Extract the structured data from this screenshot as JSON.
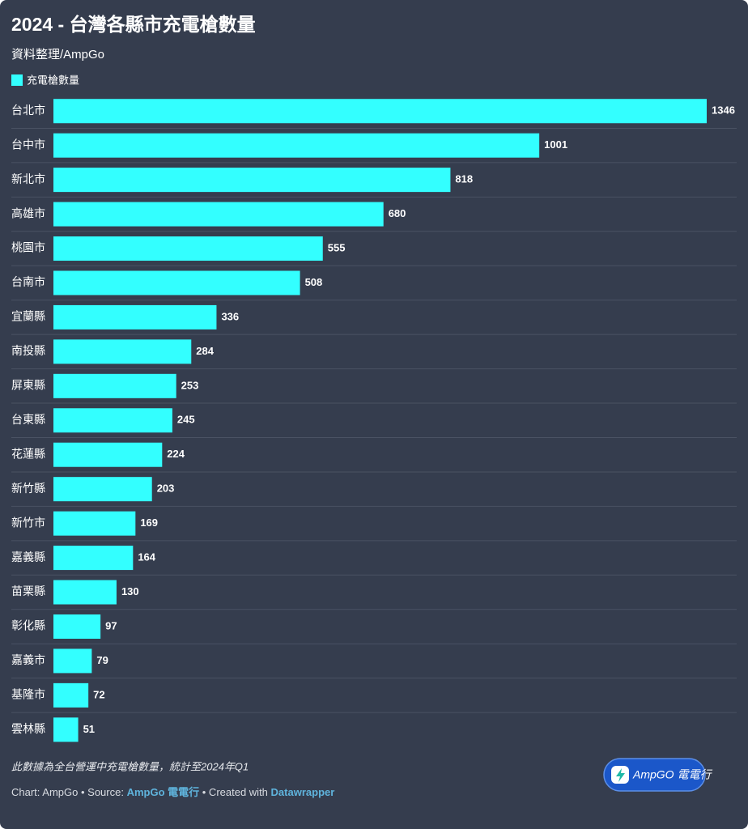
{
  "chart_data": {
    "type": "bar",
    "orientation": "horizontal",
    "title": "2024 - 台灣各縣市充電槍數量",
    "subtitle": "資料整理/AmpGo",
    "categories": [
      "台北市",
      "台中市",
      "新北市",
      "高雄市",
      "桃園市",
      "台南市",
      "宜蘭縣",
      "南投縣",
      "屏東縣",
      "台東縣",
      "花蓮縣",
      "新竹縣",
      "新竹市",
      "嘉義縣",
      "苗栗縣",
      "彰化縣",
      "嘉義市",
      "基隆市",
      "雲林縣"
    ],
    "series": [
      {
        "name": "充電槍數量",
        "color": "#33ffff",
        "values": [
          1346,
          1001,
          818,
          680,
          555,
          508,
          336,
          284,
          253,
          245,
          224,
          203,
          169,
          164,
          130,
          97,
          79,
          72,
          51
        ]
      }
    ],
    "note": "此數據為全台營運中充電槍數量，統計至2024年Q1",
    "credit": {
      "prefix": "Chart: AmpGo • Source:",
      "source": "AmpGo 電電行",
      "middle": "• Created with",
      "tool": "Datawrapper"
    },
    "logo": "AmpGO 電電行"
  }
}
